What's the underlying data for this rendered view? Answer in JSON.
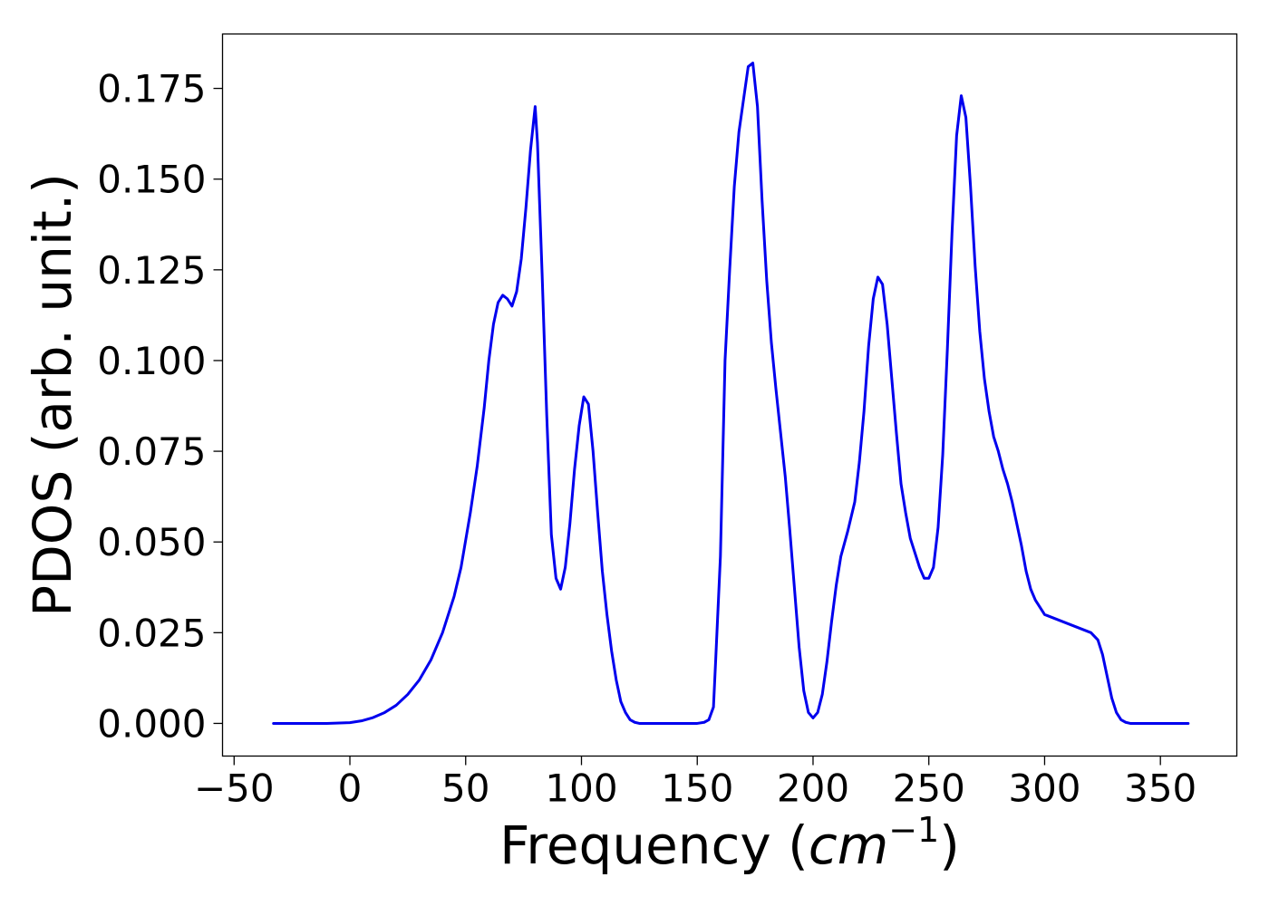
{
  "chart_data": {
    "type": "line",
    "title": "",
    "xlabel_main": "Frequency (",
    "xlabel_var": "cm",
    "xlabel_exp": "−1",
    "xlabel_close": ")",
    "ylabel": "PDOS (arb. unit.)",
    "xlim": [
      -55,
      383
    ],
    "ylim": [
      -0.009,
      0.19
    ],
    "grid": false,
    "legend": "none",
    "xticks": [
      -50,
      0,
      50,
      100,
      150,
      200,
      250,
      300,
      350
    ],
    "xtick_labels": [
      "−50",
      "0",
      "50",
      "100",
      "150",
      "200",
      "250",
      "300",
      "350"
    ],
    "yticks": [
      0,
      0.025,
      0.05,
      0.075,
      0.1,
      0.125,
      0.15,
      0.175
    ],
    "ytick_labels": [
      "0.000",
      "0.025",
      "0.050",
      "0.075",
      "0.100",
      "0.125",
      "0.150",
      "0.175"
    ],
    "series": [
      {
        "color": "#0000ee",
        "x": [
          -33,
          -10,
          0,
          5,
          10,
          15,
          20,
          25,
          30,
          35,
          40,
          45,
          48,
          52,
          55,
          58,
          60,
          62,
          64,
          66,
          68,
          70,
          72,
          74,
          76,
          78,
          80,
          81,
          83,
          85,
          87,
          89,
          91,
          93,
          95,
          97,
          99,
          101,
          103,
          105,
          107,
          109,
          111,
          113,
          115,
          117,
          119,
          121,
          123,
          125,
          130,
          140,
          150,
          153,
          155,
          157,
          158,
          160,
          162,
          164,
          166,
          168,
          170,
          172,
          174,
          176,
          178,
          180,
          182,
          184,
          186,
          188,
          190,
          192,
          194,
          196,
          198,
          200,
          202,
          204,
          206,
          208,
          210,
          212,
          215,
          218,
          220,
          222,
          224,
          226,
          228,
          230,
          232,
          234,
          236,
          238,
          240,
          242,
          244,
          246,
          248,
          250,
          252,
          254,
          256,
          258,
          260,
          262,
          264,
          266,
          268,
          270,
          272,
          274,
          276,
          278,
          280,
          282,
          284,
          286,
          288,
          290,
          292,
          294,
          296,
          298,
          300,
          310,
          320,
          323,
          325,
          327,
          329,
          331,
          333,
          335,
          337,
          340,
          350,
          362
        ],
        "y": [
          0,
          0,
          0.0002,
          0.0007,
          0.0016,
          0.003,
          0.005,
          0.008,
          0.012,
          0.0175,
          0.025,
          0.035,
          0.043,
          0.058,
          0.071,
          0.087,
          0.1,
          0.11,
          0.116,
          0.118,
          0.117,
          0.115,
          0.119,
          0.128,
          0.142,
          0.158,
          0.17,
          0.16,
          0.124,
          0.085,
          0.052,
          0.04,
          0.037,
          0.043,
          0.055,
          0.07,
          0.082,
          0.09,
          0.088,
          0.075,
          0.058,
          0.042,
          0.03,
          0.02,
          0.012,
          0.006,
          0.003,
          0.001,
          0.0003,
          0,
          0,
          0,
          0,
          0.0003,
          0.001,
          0.0045,
          0.018,
          0.046,
          0.1,
          0.125,
          0.148,
          0.163,
          0.172,
          0.181,
          0.182,
          0.17,
          0.144,
          0.122,
          0.105,
          0.092,
          0.08,
          0.068,
          0.053,
          0.037,
          0.021,
          0.009,
          0.003,
          0.0015,
          0.003,
          0.008,
          0.017,
          0.028,
          0.038,
          0.046,
          0.053,
          0.061,
          0.072,
          0.086,
          0.104,
          0.117,
          0.123,
          0.121,
          0.11,
          0.095,
          0.08,
          0.066,
          0.058,
          0.051,
          0.047,
          0.043,
          0.04,
          0.04,
          0.043,
          0.054,
          0.074,
          0.103,
          0.135,
          0.162,
          0.173,
          0.167,
          0.148,
          0.126,
          0.108,
          0.095,
          0.086,
          0.079,
          0.075,
          0.07,
          0.066,
          0.061,
          0.055,
          0.049,
          0.042,
          0.037,
          0.034,
          0.032,
          0.03,
          0.0275,
          0.025,
          0.023,
          0.019,
          0.013,
          0.007,
          0.003,
          0.001,
          0.0003,
          0,
          0,
          0,
          0
        ]
      }
    ]
  }
}
